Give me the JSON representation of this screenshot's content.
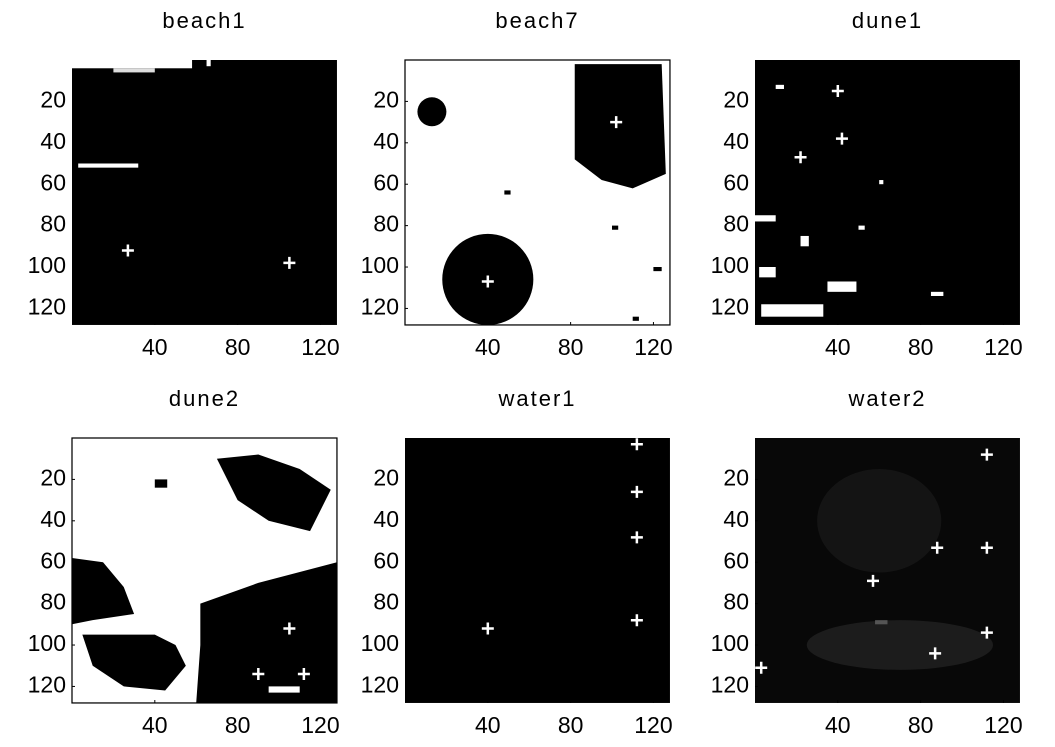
{
  "chart_data": [
    {
      "type": "image",
      "title": "beach1",
      "xlim": [
        0,
        128
      ],
      "ylim": [
        0,
        128
      ],
      "invert_y": true,
      "xticks": [
        40,
        80,
        120
      ],
      "yticks": [
        20,
        40,
        60,
        80,
        100,
        120
      ],
      "marker_color": "#ffffff",
      "x": [
        27,
        105
      ],
      "y": [
        92,
        98
      ]
    },
    {
      "type": "image",
      "title": "beach7",
      "xlim": [
        0,
        128
      ],
      "ylim": [
        0,
        128
      ],
      "invert_y": true,
      "xticks": [
        40,
        80,
        120
      ],
      "yticks": [
        20,
        40,
        60,
        80,
        100,
        120
      ],
      "marker_color": "#ffffff",
      "x": [
        102,
        40
      ],
      "y": [
        30,
        107
      ]
    },
    {
      "type": "image",
      "title": "dune1",
      "xlim": [
        0,
        128
      ],
      "ylim": [
        0,
        128
      ],
      "invert_y": true,
      "xticks": [
        40,
        80,
        120
      ],
      "yticks": [
        20,
        40,
        60,
        80,
        100,
        120
      ],
      "marker_color": "#ffffff",
      "x": [
        40,
        42,
        22
      ],
      "y": [
        15,
        38,
        47
      ]
    },
    {
      "type": "image",
      "title": "dune2",
      "xlim": [
        0,
        128
      ],
      "ylim": [
        0,
        128
      ],
      "invert_y": true,
      "xticks": [
        40,
        80,
        120
      ],
      "yticks": [
        20,
        40,
        60,
        80,
        100,
        120
      ],
      "marker_color": "#ffffff",
      "x": [
        105,
        90,
        112
      ],
      "y": [
        92,
        114,
        114
      ]
    },
    {
      "type": "image",
      "title": "water1",
      "xlim": [
        0,
        128
      ],
      "ylim": [
        0,
        128
      ],
      "invert_y": true,
      "xticks": [
        40,
        80,
        120
      ],
      "yticks": [
        20,
        40,
        60,
        80,
        100,
        120
      ],
      "marker_color": "#ffffff",
      "x": [
        112,
        112,
        112,
        112,
        40
      ],
      "y": [
        3,
        26,
        48,
        88,
        92
      ]
    },
    {
      "type": "image",
      "title": "water2",
      "xlim": [
        0,
        128
      ],
      "ylim": [
        0,
        128
      ],
      "invert_y": true,
      "xticks": [
        40,
        80,
        120
      ],
      "yticks": [
        20,
        40,
        60,
        80,
        100,
        120
      ],
      "marker_color": "#ffffff",
      "x": [
        112,
        88,
        112,
        57,
        112,
        87,
        3
      ],
      "y": [
        8,
        53,
        53,
        69,
        94,
        104,
        111
      ]
    }
  ]
}
